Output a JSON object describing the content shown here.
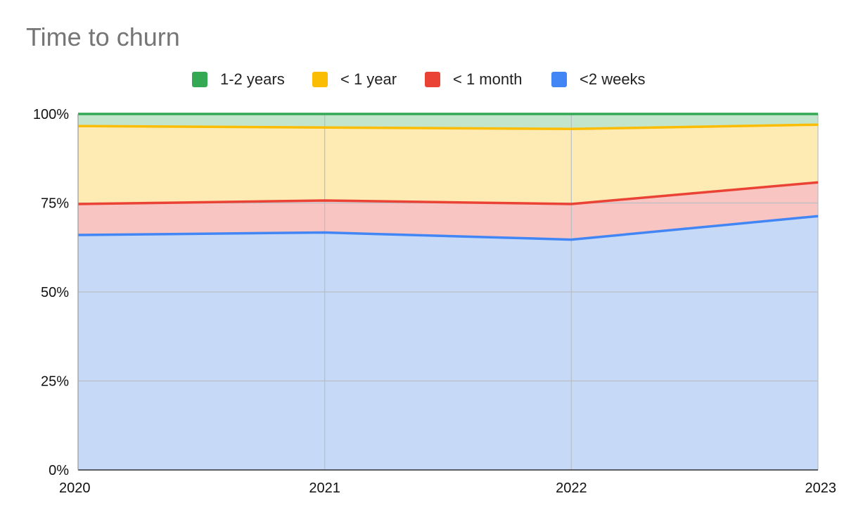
{
  "chart_data": {
    "type": "area",
    "stacked": true,
    "normalized": true,
    "title": "Time to churn",
    "xlabel": "",
    "ylabel": "",
    "x": [
      "2020",
      "2021",
      "2022",
      "2023"
    ],
    "ylim": [
      0,
      100
    ],
    "y_ticks": [
      "0%",
      "25%",
      "50%",
      "75%",
      "100%"
    ],
    "grid": true,
    "legend_position": "top",
    "series": [
      {
        "name": "<2 weeks",
        "color": "#4285f4",
        "fill": "#c6daf8",
        "values": [
          66,
          66.7,
          64.7,
          71.3
        ]
      },
      {
        "name": "< 1 month",
        "color": "#ea4335",
        "fill": "#f8c5c2",
        "values": [
          8.7,
          9,
          10,
          9.5
        ]
      },
      {
        "name": "< 1 year",
        "color": "#fbbc04",
        "fill": "#feebb4",
        "values": [
          21.9,
          20.5,
          21.1,
          16.2
        ]
      },
      {
        "name": "1-2 years",
        "color": "#34a853",
        "fill": "#c3e5cc",
        "values": [
          3.4,
          3.8,
          4.2,
          3
        ]
      }
    ]
  }
}
